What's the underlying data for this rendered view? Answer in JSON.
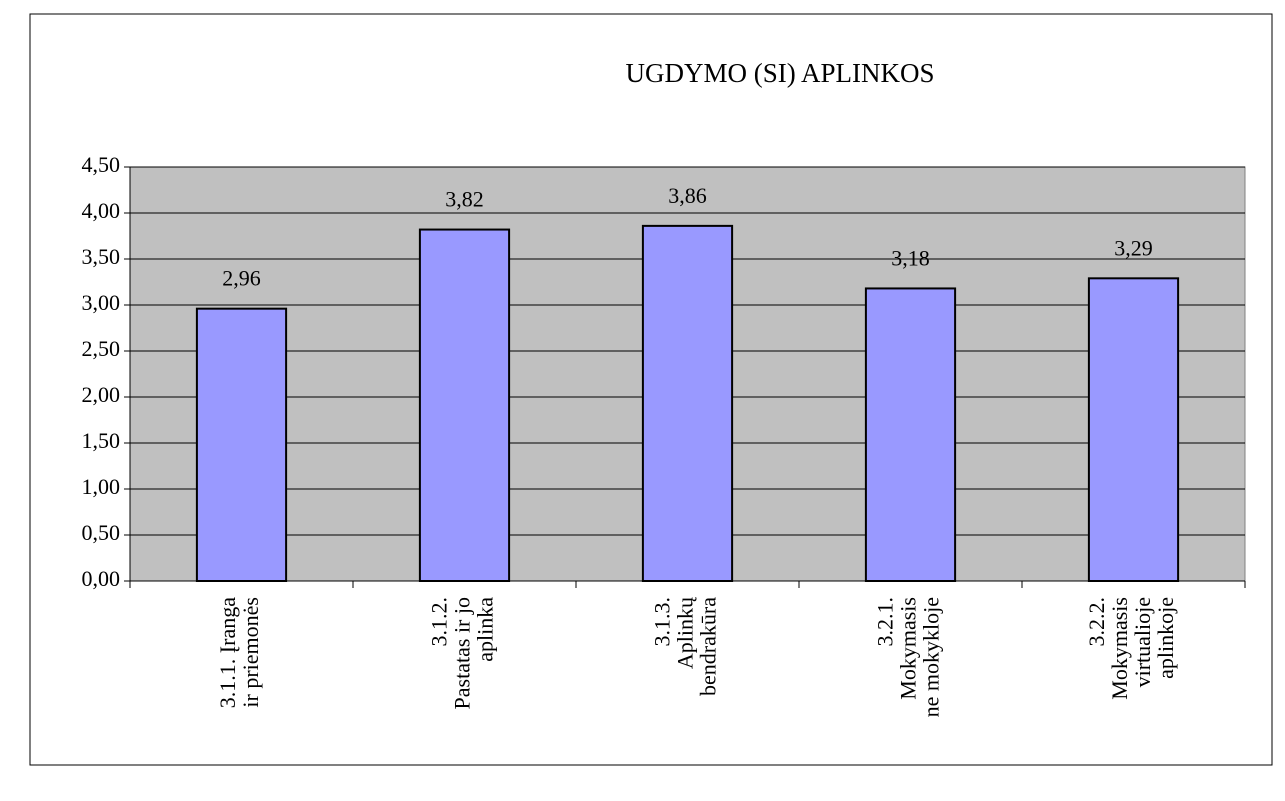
{
  "chart_data": {
    "type": "bar",
    "title": "UGDYMO (SI) APLINKOS",
    "categories": [
      [
        "3.1.1. Įranga",
        "ir priemonės"
      ],
      [
        "3.1.2.",
        "Pastatas ir jo",
        "aplinka"
      ],
      [
        "3.1.3.",
        "Aplinkų",
        "bendrakūra"
      ],
      [
        "3.2.1.",
        "Mokymasis",
        "ne mokykloje"
      ],
      [
        "3.2.2.",
        "Mokymasis",
        "virtualioje",
        "aplinkoje"
      ]
    ],
    "values": [
      2.96,
      3.82,
      3.86,
      3.18,
      3.29
    ],
    "value_labels": [
      "2,96",
      "3,82",
      "3,86",
      "3,18",
      "3,29"
    ],
    "color": "#9999ff",
    "ylim": [
      0,
      4.5
    ],
    "yticks": [
      {
        "value": 0,
        "label": "0,00"
      },
      {
        "value": 0.5,
        "label": "0,50"
      },
      {
        "value": 1,
        "label": "1,00"
      },
      {
        "value": 1.5,
        "label": "1,50"
      },
      {
        "value": 2,
        "label": "2,00"
      },
      {
        "value": 2.5,
        "label": "2,50"
      },
      {
        "value": 3,
        "label": "3,00"
      },
      {
        "value": 3.5,
        "label": "3,50"
      },
      {
        "value": 4,
        "label": "4,00"
      },
      {
        "value": 4.5,
        "label": "4,50"
      }
    ],
    "grid": true
  }
}
